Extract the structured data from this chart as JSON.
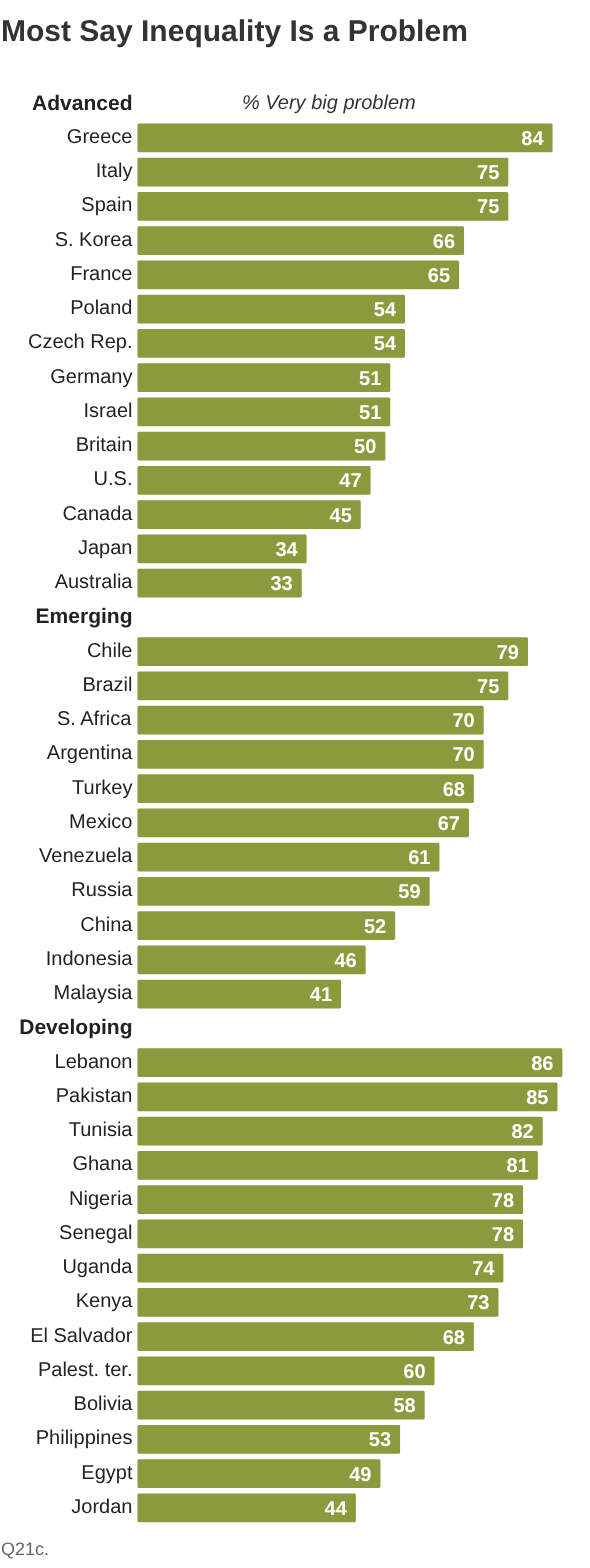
{
  "chart_data": {
    "type": "bar",
    "orientation": "horizontal",
    "title": "Most Say Inequality Is a Problem",
    "subtitle": "% Very big problem",
    "categories": [
      "Advanced",
      "Greece",
      "Italy",
      "Spain",
      "S. Korea",
      "France",
      "Poland",
      "Czech Rep.",
      "Germany",
      "Israel",
      "Britain",
      "U.S.",
      "Canada",
      "Japan",
      "Australia",
      "Emerging",
      "Chile",
      "Brazil",
      "S. Africa",
      "Argentina",
      "Turkey",
      "Mexico",
      "Venezuela",
      "Russia",
      "China",
      "Indonesia",
      "Malaysia",
      "Developing",
      "Lebanon",
      "Pakistan",
      "Tunisia",
      "Ghana",
      "Nigeria",
      "Senegal",
      "Uganda",
      "Kenya",
      "El Salvador",
      "Palest. ter.",
      "Bolivia",
      "Philippines",
      "Egypt",
      "Jordan"
    ],
    "values": [
      null,
      84,
      75,
      75,
      66,
      65,
      54,
      54,
      51,
      51,
      50,
      47,
      45,
      34,
      33,
      null,
      79,
      75,
      70,
      70,
      68,
      67,
      61,
      59,
      52,
      46,
      41,
      null,
      86,
      85,
      82,
      81,
      78,
      78,
      74,
      73,
      68,
      60,
      58,
      53,
      49,
      44
    ],
    "color": "#8a9a3c",
    "data_labels": true,
    "annotations": [
      "Q21c."
    ]
  }
}
